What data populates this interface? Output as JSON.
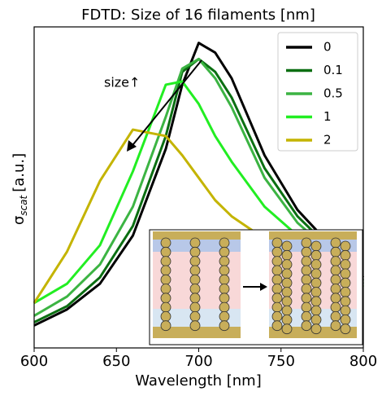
{
  "chart_data": {
    "type": "line",
    "title": "FDTD: Size of 16 filaments [nm]",
    "xlabel": "Wavelength [nm]",
    "ylabel": [
      "σ",
      "scat",
      "[a.u.]"
    ],
    "x": [
      600,
      620,
      640,
      660,
      680,
      690,
      700,
      710,
      720,
      740,
      760,
      780,
      800
    ],
    "xlim": [
      600,
      800
    ],
    "xticks": [
      600,
      650,
      700,
      750,
      800
    ],
    "ylim": [
      0,
      1
    ],
    "annotation": "size↑",
    "legend": "upper right",
    "series": [
      {
        "name": "0",
        "color": "#000000",
        "values": [
          0.07,
          0.12,
          0.2,
          0.35,
          0.62,
          0.82,
          0.95,
          0.92,
          0.84,
          0.6,
          0.43,
          0.32,
          0.22
        ]
      },
      {
        "name": "0.1",
        "color": "#0b6f12",
        "values": [
          0.08,
          0.13,
          0.22,
          0.38,
          0.66,
          0.86,
          0.9,
          0.86,
          0.78,
          0.56,
          0.41,
          0.31,
          0.21
        ]
      },
      {
        "name": "0.5",
        "color": "#3cb443",
        "values": [
          0.1,
          0.16,
          0.26,
          0.44,
          0.72,
          0.87,
          0.9,
          0.84,
          0.75,
          0.53,
          0.39,
          0.3,
          0.2
        ]
      },
      {
        "name": "1",
        "color": "#22ee22",
        "values": [
          0.14,
          0.2,
          0.32,
          0.55,
          0.82,
          0.83,
          0.76,
          0.66,
          0.58,
          0.44,
          0.35,
          0.28,
          0.19
        ]
      },
      {
        "name": "2",
        "color": "#c4b400",
        "values": [
          0.14,
          0.3,
          0.52,
          0.68,
          0.66,
          0.6,
          0.53,
          0.46,
          0.41,
          0.34,
          0.29,
          0.24,
          0.19
        ]
      }
    ]
  }
}
